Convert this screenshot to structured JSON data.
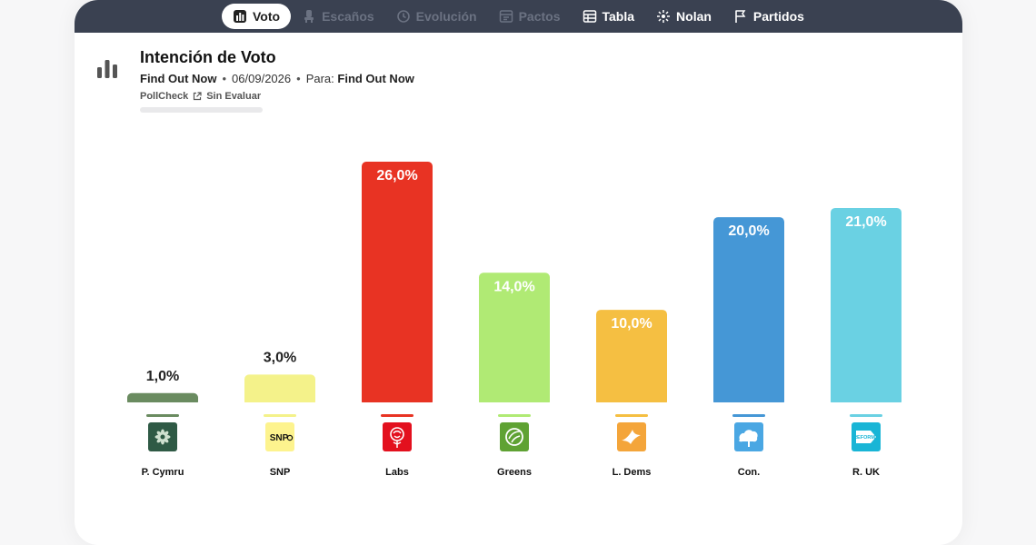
{
  "nav": {
    "tabs": [
      {
        "label": "Voto",
        "icon": "bar-chart-icon",
        "active": true,
        "disabled": false
      },
      {
        "label": "Escaños",
        "icon": "chair-icon",
        "active": false,
        "disabled": true
      },
      {
        "label": "Evolución",
        "icon": "history-icon",
        "active": false,
        "disabled": true
      },
      {
        "label": "Pactos",
        "icon": "pacts-icon",
        "active": false,
        "disabled": true
      },
      {
        "label": "Tabla",
        "icon": "table-icon",
        "active": false,
        "disabled": false
      },
      {
        "label": "Nolan",
        "icon": "nolan-icon",
        "active": false,
        "disabled": false
      },
      {
        "label": "Partidos",
        "icon": "flag-icon",
        "active": false,
        "disabled": false
      }
    ]
  },
  "header": {
    "title": "Intención de Voto",
    "pollster": "Find Out Now",
    "date": "06/09/2026",
    "para_label": "Para:",
    "para_value": "Find Out Now",
    "pollcheck": "PollCheck",
    "status": "Sin Evaluar"
  },
  "chart_data": {
    "type": "bar",
    "title": "",
    "xlabel": "",
    "ylabel": "",
    "ylim": [
      0,
      26
    ],
    "grid": false,
    "categories": [
      "P. Cymru",
      "SNP",
      "Labs",
      "Greens",
      "L. Dems",
      "Con.",
      "R. UK"
    ],
    "values": [
      1.0,
      3.0,
      26.0,
      14.0,
      10.0,
      20.0,
      21.0
    ],
    "value_labels": [
      "1,0%",
      "3,0%",
      "26,0%",
      "14,0%",
      "10,0%",
      "20,0%",
      "21,0%"
    ],
    "colors": [
      "#6a8b60",
      "#f4f28a",
      "#e83323",
      "#b0ea74",
      "#f5bf42",
      "#4597d6",
      "#6ad1e3"
    ],
    "logos": [
      "plaid-cymru-logo",
      "snp-logo",
      "labour-rose-logo",
      "greens-logo",
      "lib-dems-bird-logo",
      "conservative-tree-logo",
      "reform-uk-logo"
    ],
    "logo_text": {
      "snp": "SNP",
      "reform": "REFORM"
    }
  }
}
